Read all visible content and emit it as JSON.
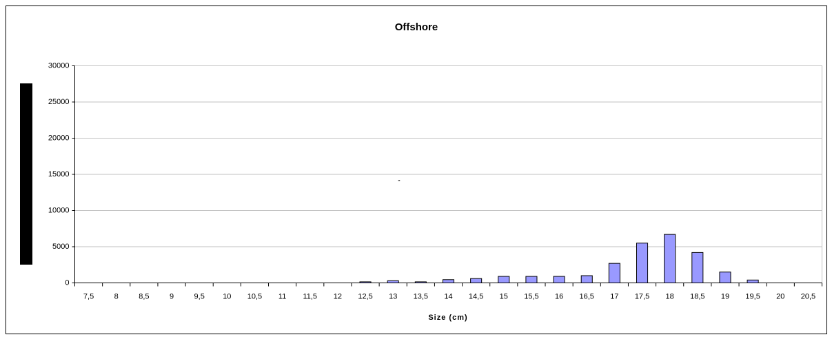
{
  "chart_data": {
    "type": "bar",
    "title": "Offshore",
    "x_label": "Size (cm)",
    "annotation": "\"",
    "categories": [
      "7,5",
      "8",
      "8,5",
      "9",
      "9,5",
      "10",
      "10,5",
      "11",
      "11,5",
      "12",
      "12,5",
      "13",
      "13,5",
      "14",
      "14,5",
      "15",
      "15,5",
      "16",
      "16,5",
      "17",
      "17,5",
      "18",
      "18,5",
      "19",
      "19,5",
      "20",
      "20,5"
    ],
    "values": [
      0,
      0,
      0,
      0,
      0,
      0,
      0,
      0,
      0,
      0,
      150,
      300,
      150,
      450,
      600,
      900,
      900,
      900,
      1000,
      2700,
      5500,
      6700,
      4200,
      1500,
      400,
      0,
      0
    ],
    "color": "#9999ff",
    "ylim": [
      0,
      30000
    ],
    "yticks": [
      0,
      5000,
      10000,
      15000,
      20000,
      25000,
      30000
    ],
    "grid": true
  }
}
